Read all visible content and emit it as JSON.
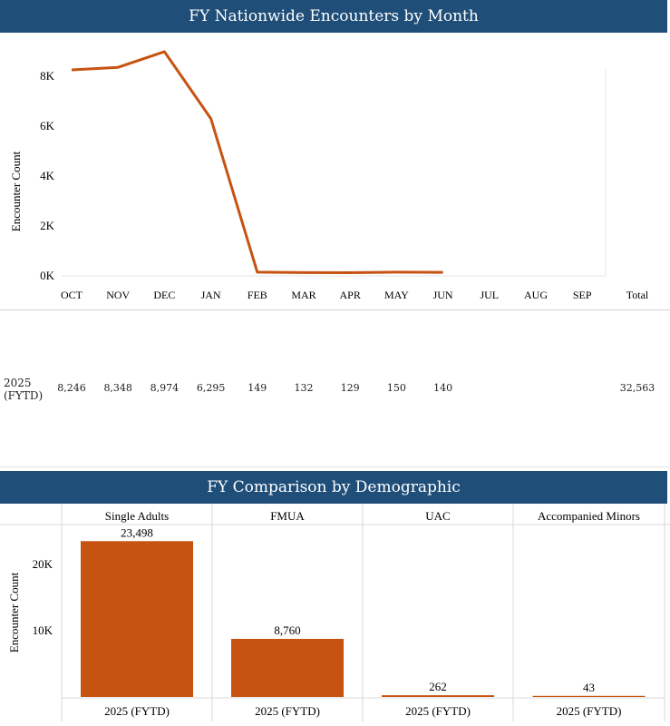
{
  "line_section": {
    "title": "FY Nationwide Encounters by Month",
    "table": {
      "row_label_line1": "2025",
      "row_label_line2": "(FYTD)",
      "values": [
        "8,246",
        "8,348",
        "8,974",
        "6,295",
        "149",
        "132",
        "129",
        "150",
        "140",
        "",
        "",
        "",
        ""
      ],
      "total": "32,563"
    }
  },
  "bar_section": {
    "title": "FY Comparison by Demographic"
  },
  "chart_data": [
    {
      "type": "line",
      "title": "FY Nationwide Encounters by Month",
      "categories": [
        "OCT",
        "NOV",
        "DEC",
        "JAN",
        "FEB",
        "MAR",
        "APR",
        "MAY",
        "JUN",
        "JUL",
        "AUG",
        "SEP"
      ],
      "extra_column_label": "Total",
      "series": [
        {
          "name": "2025 (FYTD)",
          "values": [
            8246,
            8348,
            8974,
            6295,
            149,
            132,
            129,
            150,
            140,
            null,
            null,
            null
          ]
        }
      ],
      "ylabel": "Encounter Count",
      "yticks": [
        0,
        2000,
        4000,
        6000,
        8000
      ],
      "ytick_labels": [
        "0K",
        "2K",
        "4K",
        "6K",
        "8K"
      ],
      "ylim": [
        0,
        9300
      ],
      "color": "#c65311"
    },
    {
      "type": "bar",
      "title": "FY Comparison by Demographic",
      "panels": [
        "Single Adults",
        "FMUA",
        "UAC",
        "Accompanied Minors"
      ],
      "categories": [
        "2025 (FYTD)",
        "2025 (FYTD)",
        "2025 (FYTD)",
        "2025 (FYTD)"
      ],
      "values": [
        23498,
        8760,
        262,
        43
      ],
      "value_labels": [
        "23,498",
        "8,760",
        "262",
        "43"
      ],
      "ylabel": "Encounter Count",
      "yticks": [
        10000,
        20000
      ],
      "ytick_labels": [
        "10K",
        "20K"
      ],
      "ylim": [
        0,
        26000
      ],
      "color": "#c65311"
    }
  ]
}
